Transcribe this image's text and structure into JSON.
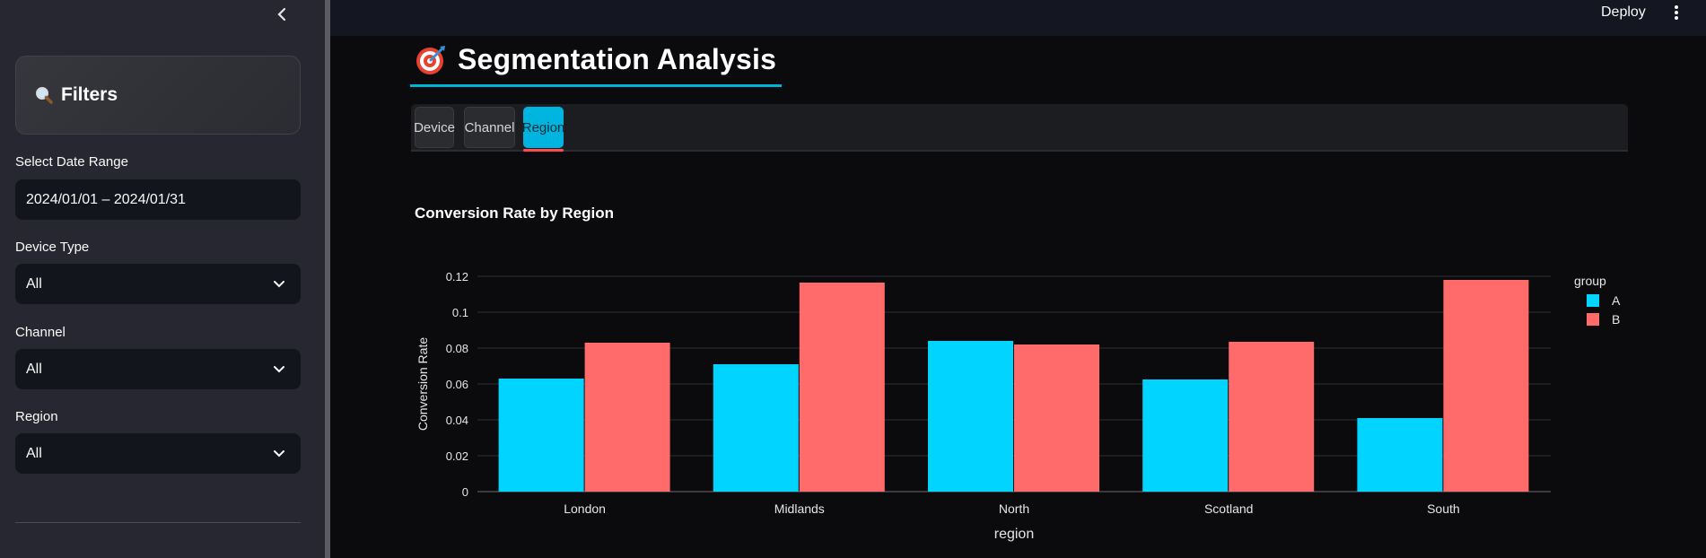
{
  "header": {
    "deploy_label": "Deploy",
    "menu_icon": "kebab-menu-icon"
  },
  "sidebar": {
    "collapse_icon": "chevron-left-icon",
    "filters_title": "Filters",
    "filters_icon": "magnifier-icon",
    "fields": [
      {
        "label": "Select Date Range",
        "value": "2024/01/01 – 2024/01/31",
        "type": "date"
      },
      {
        "label": "Device Type",
        "value": "All",
        "type": "select"
      },
      {
        "label": "Channel",
        "value": "All",
        "type": "select"
      },
      {
        "label": "Region",
        "value": "All",
        "type": "select"
      }
    ]
  },
  "main": {
    "title": "Segmentation Analysis",
    "title_icon": "target-dart-icon",
    "tabs": [
      {
        "label": "Device",
        "active": false
      },
      {
        "label": "Channel",
        "active": false
      },
      {
        "label": "Region",
        "active": true
      }
    ],
    "accent_color": "#00b4d8"
  },
  "chart_data": {
    "type": "bar",
    "title": "Conversion Rate by Region",
    "xlabel": "region",
    "ylabel": "Conversion Rate",
    "categories": [
      "London",
      "Midlands",
      "North",
      "Scotland",
      "South"
    ],
    "series": [
      {
        "name": "A",
        "color": "#00d4ff",
        "values": [
          0.063,
          0.071,
          0.084,
          0.0625,
          0.041
        ]
      },
      {
        "name": "B",
        "color": "#ff6b6b",
        "values": [
          0.083,
          0.1165,
          0.082,
          0.0835,
          0.118
        ]
      }
    ],
    "yticks": [
      "0",
      "0.02",
      "0.04",
      "0.06",
      "0.08",
      "0.1",
      "0.12"
    ],
    "ylim": [
      0,
      0.12
    ],
    "legend_title": "group",
    "legend_position": "top-right",
    "grid": true
  }
}
